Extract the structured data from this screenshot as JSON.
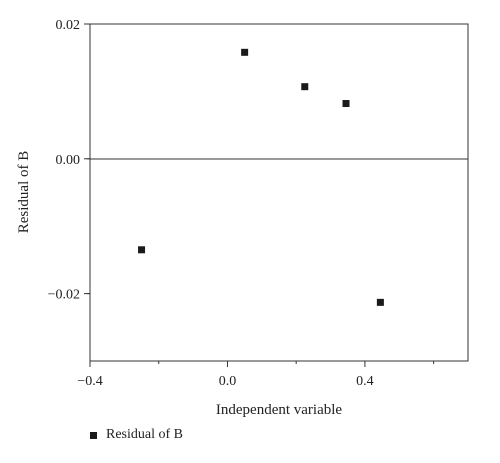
{
  "chart_data": {
    "type": "scatter",
    "xlabel": "Independent variable",
    "ylabel": "Residual of B",
    "xlim": [
      -0.4,
      0.7
    ],
    "ylim": [
      -0.03,
      0.02
    ],
    "x_ticks": [
      -0.4,
      0.0,
      0.4
    ],
    "x_tick_labels": [
      "−0.4",
      "0.0",
      "0.4"
    ],
    "y_ticks": [
      -0.02,
      0.0,
      0.02
    ],
    "y_tick_labels": [
      "−0.02",
      "0.00",
      "0.02"
    ],
    "zero_line": true,
    "grid": false,
    "legend_position": "bottom-left",
    "series": [
      {
        "name": "Residual of B",
        "color": "#1a1a1a",
        "marker": "square",
        "points": [
          {
            "x": -0.25,
            "y": -0.0135
          },
          {
            "x": 0.05,
            "y": 0.0158
          },
          {
            "x": 0.225,
            "y": 0.0107
          },
          {
            "x": 0.345,
            "y": 0.0082
          },
          {
            "x": 0.445,
            "y": -0.0213
          }
        ]
      }
    ]
  }
}
